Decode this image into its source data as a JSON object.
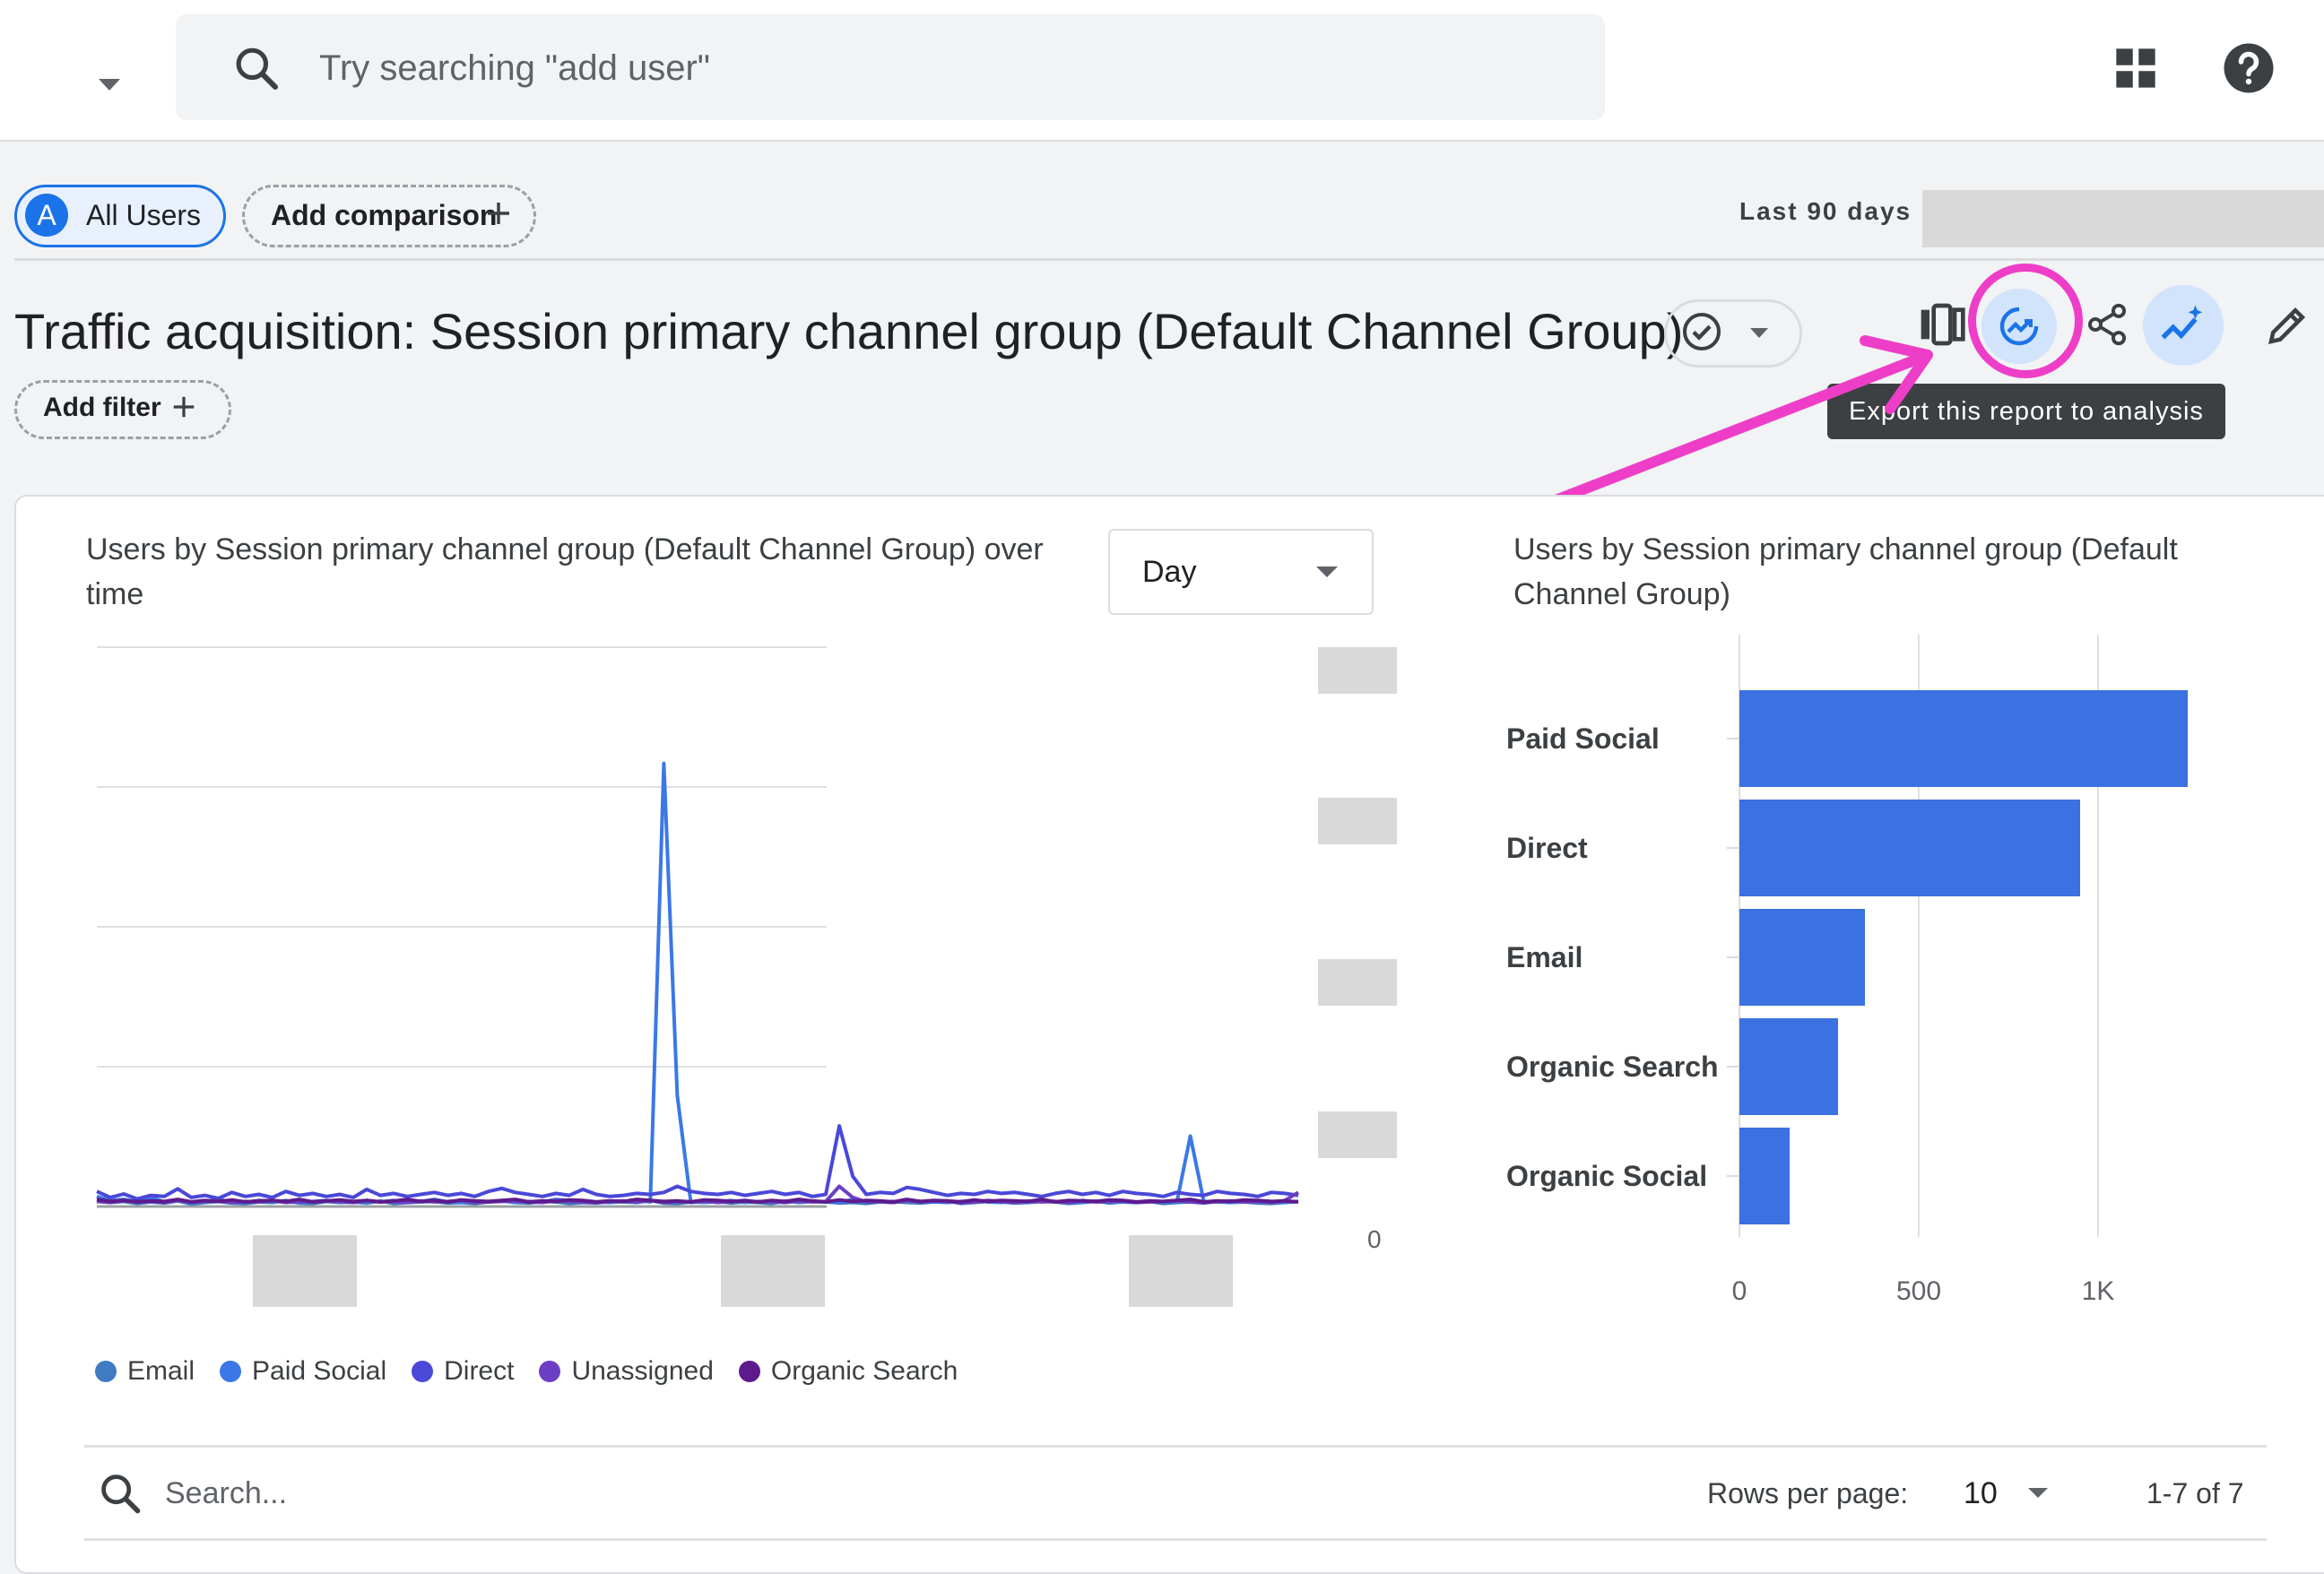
{
  "search": {
    "placeholder": "Try searching \"add user\""
  },
  "comparison": {
    "segment_badge": "A",
    "segment_label": "All Users",
    "add_comparison": "Add comparison"
  },
  "date": {
    "label": "Last 90 days"
  },
  "report": {
    "title": "Traffic acquisition: Session primary channel group (Default Channel Group)",
    "add_filter": "Add filter",
    "tooltip": "Export this report to analysis"
  },
  "line_panel": {
    "title": "Users by Session primary channel group (Default Channel Group) over time",
    "interval": "Day",
    "y_zero": "0",
    "legend": [
      {
        "name": "Email",
        "color": "#3f7cc1"
      },
      {
        "name": "Paid Social",
        "color": "#3b78e7"
      },
      {
        "name": "Direct",
        "color": "#4a48d8"
      },
      {
        "name": "Unassigned",
        "color": "#6c3ec4"
      },
      {
        "name": "Organic Search",
        "color": "#5e1a8c"
      }
    ]
  },
  "bar_panel": {
    "title": "Users by Session primary channel group (Default Channel Group)"
  },
  "table": {
    "search_placeholder": "Search...",
    "rows_per_page_label": "Rows per page:",
    "rows_per_page_value": "10",
    "pagination": "1-7 of 7"
  },
  "chart_data": [
    {
      "type": "line",
      "title": "Users by Session primary channel group (Default Channel Group) over time",
      "xlabel": "",
      "ylabel": "",
      "grid": true,
      "legend_position": "bottom",
      "x": [
        1,
        2,
        3,
        4,
        5,
        6,
        7,
        8,
        9,
        10,
        11,
        12,
        13,
        14,
        15,
        16,
        17,
        18,
        19,
        20,
        21,
        22,
        23,
        24,
        25,
        26,
        27,
        28,
        29,
        30,
        31,
        32,
        33,
        34,
        35,
        36,
        37,
        38,
        39,
        40,
        41,
        42,
        43,
        44,
        45,
        46,
        47,
        48,
        49,
        50,
        51,
        52,
        53,
        54,
        55,
        56,
        57,
        58,
        59,
        60,
        61,
        62,
        63,
        64,
        65,
        66,
        67,
        68,
        69,
        70,
        71,
        72,
        73,
        74,
        75,
        76,
        77,
        78,
        79,
        80,
        81,
        82,
        83,
        84,
        85,
        86,
        87,
        88,
        89,
        90
      ],
      "ylim": [
        0,
        1000
      ],
      "series": [
        {
          "name": "Email",
          "values": [
            12,
            8,
            10,
            6,
            9,
            7,
            11,
            5,
            8,
            10,
            7,
            6,
            9,
            8,
            12,
            7,
            6,
            10,
            8,
            9,
            7,
            11,
            6,
            8,
            9,
            10,
            7,
            8,
            6,
            9,
            11,
            8,
            7,
            10,
            9,
            6,
            8,
            7,
            10,
            9,
            8,
            12,
            7,
            6,
            9,
            8,
            10,
            7,
            9,
            8,
            6,
            11,
            8,
            10,
            9,
            7,
            8,
            6,
            9,
            10,
            8,
            7,
            9,
            11,
            6,
            8,
            10,
            9,
            7,
            8,
            10,
            9,
            6,
            8,
            11,
            7,
            9,
            8,
            10,
            6,
            8,
            9,
            7,
            10,
            8,
            9,
            7,
            6,
            8,
            10
          ]
        },
        {
          "name": "Paid Social",
          "values": [
            20,
            12,
            14,
            10,
            18,
            9,
            12,
            8,
            10,
            14,
            9,
            8,
            12,
            10,
            9,
            8,
            10,
            12,
            9,
            8,
            10,
            9,
            12,
            8,
            10,
            14,
            9,
            8,
            10,
            9,
            12,
            8,
            10,
            9,
            14,
            12,
            10,
            9,
            8,
            10,
            12,
            9,
            880,
            220,
            8,
            10,
            9,
            12,
            8,
            10,
            9,
            8,
            12,
            10,
            9,
            8,
            14,
            10,
            9,
            8,
            12,
            10,
            9,
            8,
            10,
            12,
            9,
            8,
            10,
            9,
            12,
            10,
            9,
            8,
            10,
            12,
            9,
            8,
            10,
            9,
            8,
            140,
            10,
            9,
            8,
            12,
            10,
            9,
            8,
            10
          ]
        },
        {
          "name": "Direct",
          "values": [
            30,
            18,
            25,
            15,
            22,
            20,
            35,
            18,
            22,
            16,
            28,
            20,
            24,
            18,
            30,
            22,
            26,
            20,
            24,
            18,
            34,
            22,
            26,
            20,
            24,
            28,
            22,
            26,
            20,
            30,
            36,
            28,
            24,
            20,
            26,
            22,
            34,
            24,
            20,
            22,
            26,
            24,
            28,
            40,
            30,
            26,
            24,
            28,
            22,
            26,
            30,
            24,
            28,
            20,
            24,
            160,
            60,
            24,
            28,
            26,
            38,
            34,
            28,
            22,
            26,
            24,
            30,
            26,
            28,
            24,
            20,
            26,
            30,
            24,
            28,
            22,
            30,
            26,
            24,
            20,
            28,
            24,
            22,
            30,
            26,
            24,
            20,
            28,
            26,
            22
          ]
        },
        {
          "name": "Unassigned",
          "values": [
            10,
            8,
            12,
            9,
            10,
            8,
            12,
            9,
            10,
            11,
            8,
            10,
            9,
            12,
            8,
            10,
            9,
            11,
            10,
            8,
            12,
            9,
            10,
            8,
            11,
            9,
            10,
            12,
            8,
            9,
            10,
            11,
            9,
            8,
            12,
            10,
            9,
            8,
            10,
            11,
            9,
            12,
            8,
            10,
            9,
            11,
            8,
            10,
            12,
            9,
            10,
            8,
            11,
            9,
            10,
            40,
            18,
            9,
            10,
            8,
            12,
            9,
            11,
            10,
            8,
            9,
            12,
            10,
            8,
            11,
            9,
            10,
            8,
            12,
            9,
            10,
            11,
            8,
            9,
            10,
            12,
            9,
            8,
            10,
            11,
            9,
            10,
            8,
            12,
            28
          ]
        },
        {
          "name": "Organic Search",
          "values": [
            14,
            10,
            12,
            9,
            11,
            10,
            14,
            9,
            12,
            10,
            13,
            9,
            11,
            12,
            10,
            14,
            9,
            11,
            13,
            10,
            12,
            9,
            11,
            14,
            10,
            12,
            9,
            13,
            11,
            10,
            12,
            14,
            9,
            11,
            10,
            13,
            12,
            9,
            11,
            10,
            14,
            12,
            10,
            11,
            9,
            13,
            12,
            10,
            11,
            9,
            12,
            10,
            14,
            11,
            9,
            13,
            10,
            12,
            11,
            9,
            14,
            10,
            12,
            11,
            9,
            13,
            10,
            12,
            11,
            10,
            14,
            9,
            12,
            11,
            10,
            13,
            12,
            9,
            11,
            10,
            12,
            14,
            9,
            11,
            10,
            13,
            12,
            10,
            11,
            9
          ]
        }
      ]
    },
    {
      "type": "bar",
      "orientation": "horizontal",
      "title": "Users by Session primary channel group (Default Channel Group)",
      "categories": [
        "Paid Social",
        "Direct",
        "Email",
        "Organic Search",
        "Organic Social"
      ],
      "values": [
        1250,
        950,
        350,
        275,
        140
      ],
      "xlim": [
        0,
        1250
      ],
      "xticks": [
        "0",
        "500",
        "1K"
      ],
      "grid": true,
      "color": "#3b71e0"
    }
  ]
}
